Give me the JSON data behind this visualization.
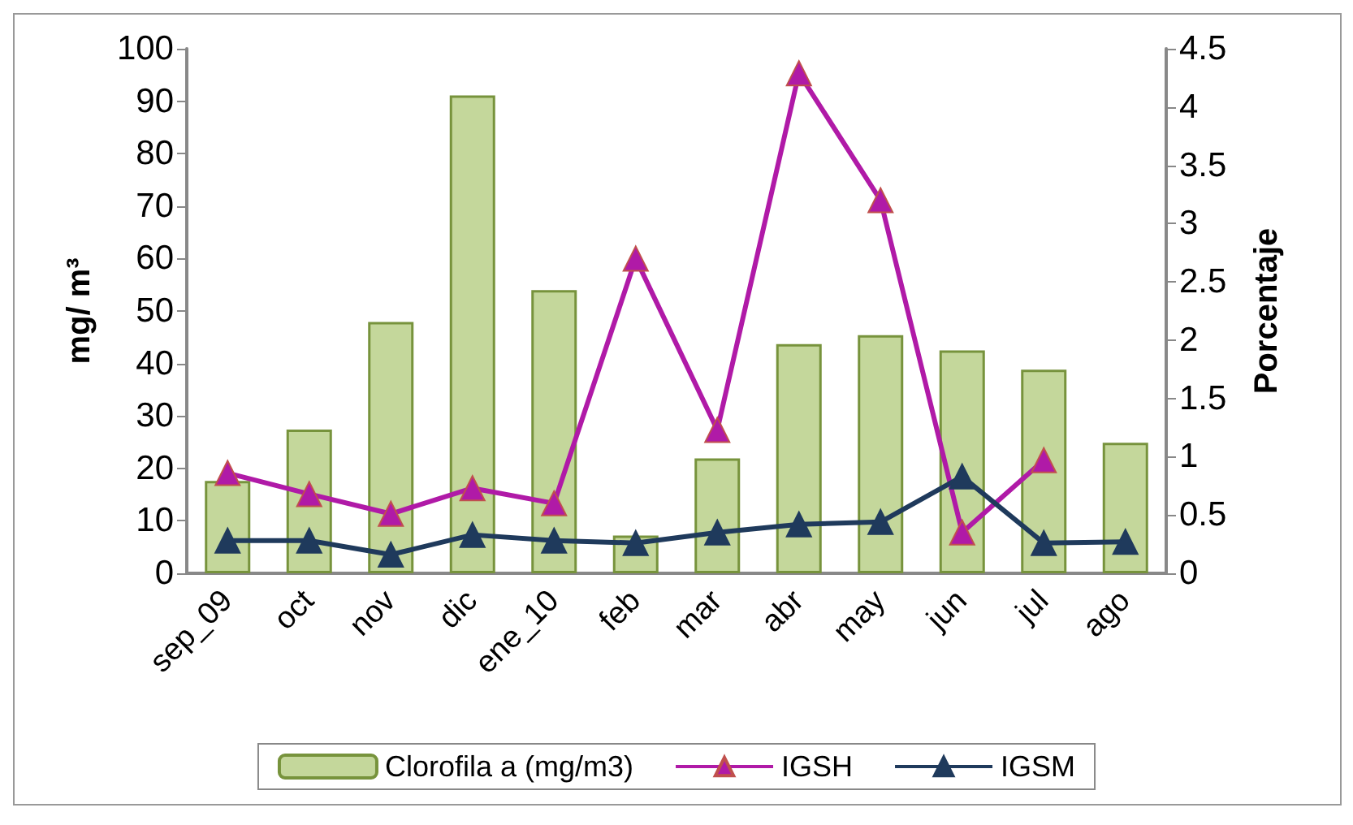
{
  "chart_data": {
    "type": "bar",
    "ylabel": "mg/ m³",
    "y2label": "Porcentaje",
    "categories": [
      "sep_09",
      "oct",
      "nov",
      "dic",
      "ene_10",
      "feb",
      "mar",
      "abr",
      "may",
      "jun",
      "jul",
      "ago"
    ],
    "series": [
      {
        "name": "Clorofila a (mg/m3)",
        "color": "#c4d79b",
        "values": [
          17.6,
          27.4,
          47.9,
          91.1,
          54.0,
          7.2,
          21.9,
          43.7,
          45.4,
          42.5,
          38.8,
          24.9
        ]
      },
      {
        "name": "IGSH",
        "type": "line",
        "axis": "y2",
        "color": "#b01aa7",
        "values": [
          0.86,
          0.68,
          0.51,
          0.73,
          0.6,
          2.7,
          1.23,
          4.29,
          3.2,
          0.35,
          0.97,
          null
        ]
      },
      {
        "name": "IGSM",
        "type": "line",
        "axis": "y2",
        "color": "#1f3a5c",
        "values": [
          0.28,
          0.28,
          0.16,
          0.33,
          0.28,
          0.26,
          0.35,
          0.42,
          0.44,
          0.83,
          0.26,
          0.27
        ]
      }
    ],
    "ylim": [
      0,
      100
    ],
    "yticks": [
      0,
      10,
      20,
      30,
      40,
      50,
      60,
      70,
      80,
      90,
      100
    ],
    "y2lim": [
      0,
      4.5
    ],
    "y2ticks": [
      0,
      0.5,
      1,
      1.5,
      2,
      2.5,
      3,
      3.5,
      4,
      4.5
    ],
    "grid": false,
    "legend": "bottom",
    "marker": "triangle",
    "line_style": "solid"
  }
}
